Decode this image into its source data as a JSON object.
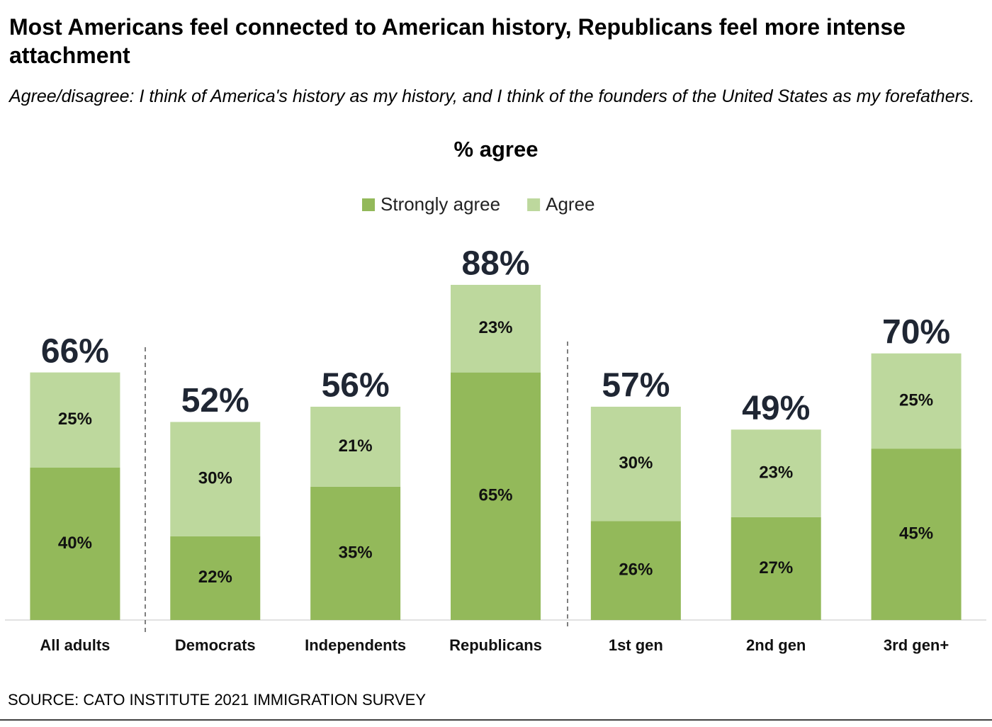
{
  "chart_data": {
    "type": "stacked-bar",
    "title": "Most Americans feel connected to American history, Republicans feel more intense attachment",
    "subtitle": "Agree/disagree: I think of America's history as my history, and I think of the founders of the United States as my forefathers.",
    "axis_title": "% agree",
    "source": "SOURCE: CATO INSTITUTE 2021 IMMIGRATION SURVEY",
    "categories": [
      "All adults",
      "Democrats",
      "Independents",
      "Republicans",
      "1st gen",
      "2nd gen",
      "3rd gen+"
    ],
    "series": [
      {
        "name": "Strongly agree",
        "color": "#93b95a",
        "values": [
          40,
          22,
          35,
          65,
          26,
          27,
          45
        ],
        "value_labels": [
          "40%",
          "22%",
          "35%",
          "65%",
          "26%",
          "27%",
          "45%"
        ]
      },
      {
        "name": "Agree",
        "color": "#bdd89d",
        "values": [
          25,
          30,
          21,
          23,
          30,
          23,
          25
        ],
        "value_labels": [
          "25%",
          "30%",
          "21%",
          "23%",
          "30%",
          "23%",
          "25%"
        ]
      }
    ],
    "totals": {
      "values": [
        66,
        52,
        56,
        88,
        57,
        49,
        70
      ],
      "value_labels": [
        "66%",
        "52%",
        "56%",
        "88%",
        "57%",
        "49%",
        "70%"
      ]
    },
    "legend": "top"
  }
}
